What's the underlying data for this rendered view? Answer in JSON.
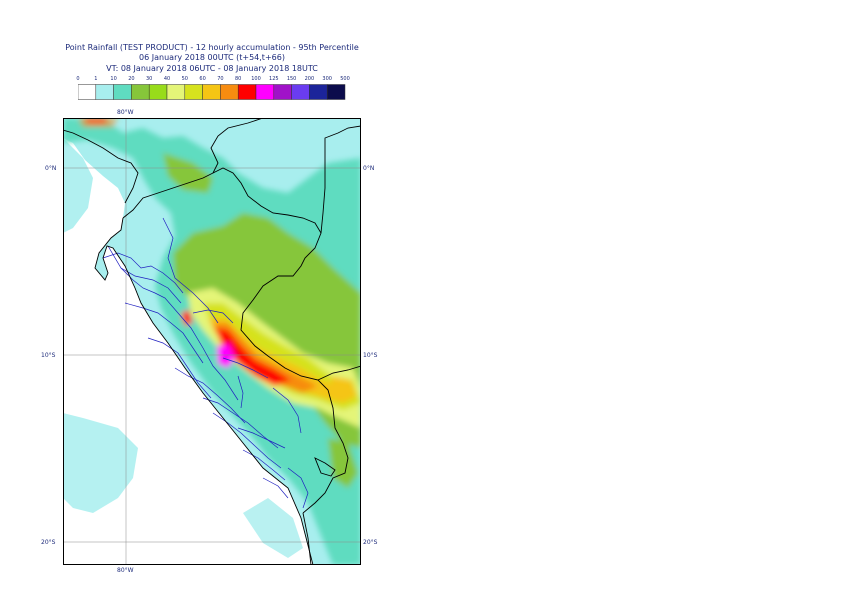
{
  "title": {
    "line1": "Point Rainfall (TEST PRODUCT) - 12 hourly accumulation - 95th Percentile",
    "line2": "06 January 2018 00UTC (t+54,t+66)",
    "line3": "VT: 08 January 2018 06UTC - 08 January 2018 18UTC"
  },
  "legend": {
    "ticks": [
      "0",
      "1",
      "10",
      "20",
      "30",
      "40",
      "50",
      "60",
      "70",
      "80",
      "100",
      "125",
      "150",
      "200",
      "300",
      "500"
    ],
    "colors": [
      "#ffffff",
      "#a8eeee",
      "#5fdcc0",
      "#86c63a",
      "#98dc1a",
      "#e4f578",
      "#d6e21e",
      "#f5c514",
      "#f78c10",
      "#ff0000",
      "#ff00ff",
      "#a012c8",
      "#6a3cf0",
      "#1c249a",
      "#0c0c4c"
    ]
  },
  "axes": {
    "lat_labels_left": [
      "0°N",
      "10°S",
      "20°S"
    ],
    "lat_labels_right": [
      "0°N",
      "10°S",
      "20°S"
    ],
    "lon_label_top": "80°W",
    "lon_label_bottom": "80°W"
  },
  "map": {
    "ocean_color": "#ffffff",
    "land_base_color": "#a8eeee",
    "border_color": "#000000",
    "admin_border_color": "#2020c0",
    "grid_color": "#8a8a8a"
  }
}
